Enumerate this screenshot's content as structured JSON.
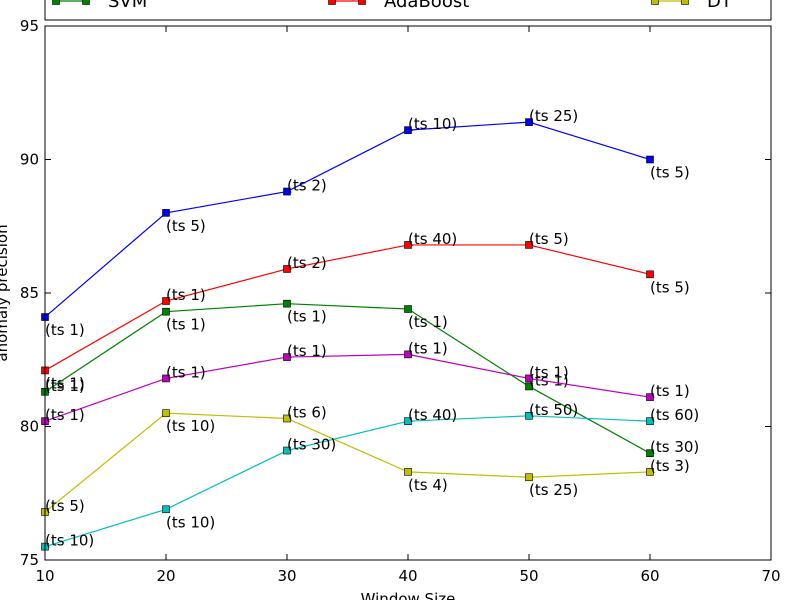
{
  "chart_data": {
    "type": "line",
    "xlabel": "Window Size",
    "ylabel": "anomaly precision",
    "xlim": [
      10,
      70
    ],
    "ylim": [
      75,
      95
    ],
    "xticks": [
      10,
      20,
      30,
      40,
      50,
      60,
      70
    ],
    "yticks": [
      75,
      80,
      85,
      90,
      95
    ],
    "grid": false,
    "legend_position": "top",
    "legend_order": [
      "SVM",
      "AdaBoost",
      "DT"
    ],
    "x": [
      10,
      20,
      30,
      40,
      50,
      60
    ],
    "series": [
      {
        "name": "",
        "color": "#0000ff",
        "marker_fill": "#0000ff",
        "values": [
          84.1,
          88.0,
          88.8,
          91.1,
          91.4,
          90.0
        ],
        "labels": [
          "(ts 1)",
          "(ts 5)",
          "(ts 2)",
          "(ts 10)",
          "(ts 25)",
          "(ts 5)"
        ],
        "label_pos": [
          "below",
          "below",
          "above",
          "above",
          "above",
          "below"
        ]
      },
      {
        "name": "AdaBoost",
        "color": "#ff0000",
        "marker_fill": "#ff0000",
        "values": [
          82.1,
          84.7,
          85.9,
          86.8,
          86.8,
          85.7
        ],
        "labels": [
          "(ts 1)",
          "(ts 1)",
          "(ts 2)",
          "(ts 40)",
          "(ts 5)",
          "(ts 5)"
        ],
        "label_pos": [
          "below",
          "above",
          "above",
          "above",
          "above",
          "below"
        ]
      },
      {
        "name": "SVM",
        "color": "#008000",
        "marker_fill": "#008000",
        "values": [
          81.3,
          84.3,
          84.6,
          84.4,
          81.5,
          79.0
        ],
        "labels": [
          "(ts 1)",
          "(ts 1)",
          "(ts 1)",
          "(ts 1)",
          "(ts 1)",
          "(ts 30)"
        ],
        "label_pos": [
          "above",
          "below",
          "below",
          "below",
          "above",
          "above"
        ]
      },
      {
        "name": "",
        "color": "#bf00bf",
        "marker_fill": "#bf00bf",
        "values": [
          80.2,
          81.8,
          82.6,
          82.7,
          81.8,
          81.1
        ],
        "labels": [
          "(ts 1)",
          "(ts 1)",
          "(ts 1)",
          "(ts 1)",
          "(ts 1)",
          "(ts 1)"
        ],
        "label_pos": [
          "above",
          "above",
          "above",
          "above",
          "above",
          "above"
        ]
      },
      {
        "name": "DT",
        "color": "#bfbf00",
        "marker_fill": "#bfbf00",
        "values": [
          76.8,
          80.5,
          80.3,
          78.3,
          78.1,
          78.3
        ],
        "labels": [
          "(ts 5)",
          "(ts 10)",
          "(ts 6)",
          "(ts 4)",
          "(ts 25)",
          "(ts 3)"
        ],
        "label_pos": [
          "above",
          "below",
          "above",
          "below",
          "below",
          "above"
        ]
      },
      {
        "name": "",
        "color": "#00bfbf",
        "marker_fill": "#00bfbf",
        "values": [
          75.5,
          76.9,
          79.1,
          80.2,
          80.4,
          80.2
        ],
        "labels": [
          "(ts 10)",
          "(ts 10)",
          "(ts 30)",
          "(ts 40)",
          "(ts 50)",
          "(ts 60)"
        ],
        "label_pos": [
          "above",
          "below",
          "above",
          "above",
          "above",
          "above"
        ]
      }
    ]
  }
}
